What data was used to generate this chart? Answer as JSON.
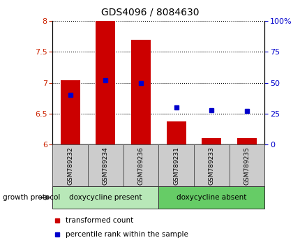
{
  "title": "GDS4096 / 8084630",
  "samples": [
    "GSM789232",
    "GSM789234",
    "GSM789236",
    "GSM789231",
    "GSM789233",
    "GSM789235"
  ],
  "red_values": [
    7.04,
    8.0,
    7.7,
    6.37,
    6.1,
    6.1
  ],
  "blue_values": [
    40,
    52,
    50,
    30,
    28,
    27
  ],
  "ylim_left": [
    6.0,
    8.0
  ],
  "ylim_right": [
    0,
    100
  ],
  "yticks_left": [
    6.0,
    6.5,
    7.0,
    7.5,
    8.0
  ],
  "yticks_right": [
    0,
    25,
    50,
    75,
    100
  ],
  "bar_color": "#CC0000",
  "dot_color": "#0000CC",
  "baseline": 6.0,
  "group1_label": "doxycycline present",
  "group2_label": "doxycycline absent",
  "group1_color": "#b8e8b8",
  "group2_color": "#66cc66",
  "group1_n": 3,
  "group2_n": 3,
  "growth_protocol_label": "growth protocol",
  "legend_red_label": "transformed count",
  "legend_blue_label": "percentile rank within the sample",
  "tick_color_left": "#CC2200",
  "tick_color_right": "#0000CC",
  "bar_width": 0.55
}
